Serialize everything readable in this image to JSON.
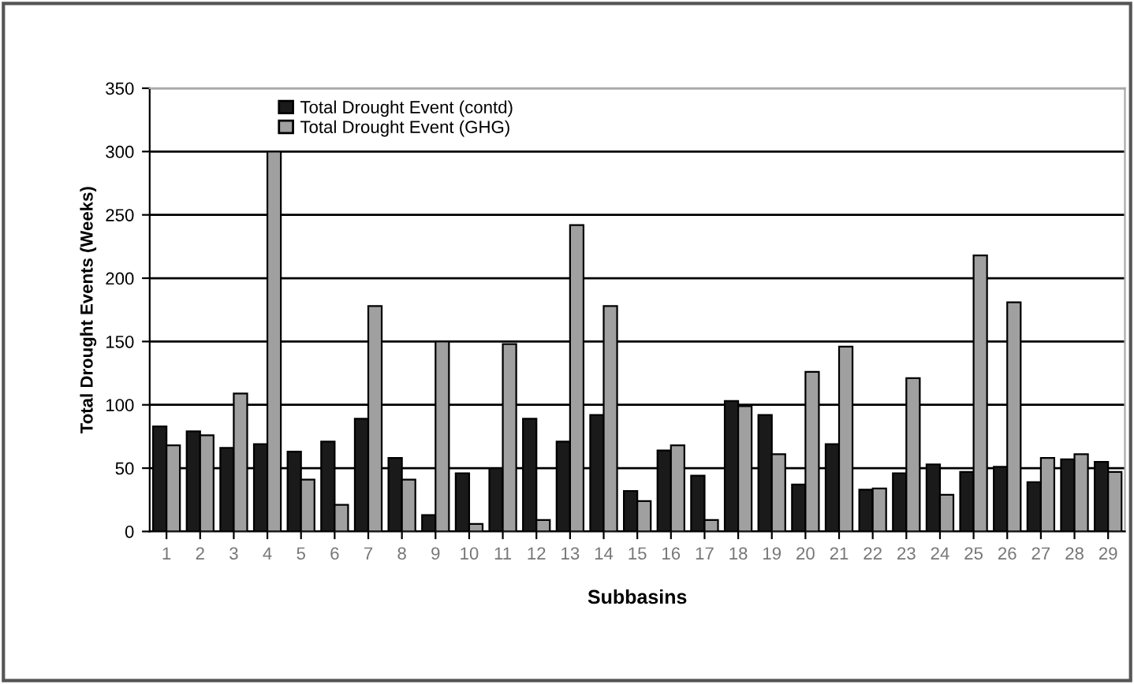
{
  "chart_data": {
    "type": "bar",
    "xlabel": "Subbasins",
    "ylabel": "Total Drought Events (Weeks)",
    "categories": [
      "1",
      "2",
      "3",
      "4",
      "5",
      "6",
      "7",
      "8",
      "9",
      "10",
      "11",
      "12",
      "13",
      "14",
      "15",
      "16",
      "17",
      "18",
      "19",
      "20",
      "21",
      "22",
      "23",
      "24",
      "25",
      "26",
      "27",
      "28",
      "29"
    ],
    "series": [
      {
        "name": "Total Drought Event (contd)",
        "color": "#1a1a1a",
        "values": [
          83,
          79,
          66,
          69,
          63,
          71,
          89,
          58,
          13,
          46,
          50,
          89,
          71,
          92,
          32,
          64,
          44,
          103,
          92,
          37,
          69,
          33,
          46,
          53,
          47,
          51,
          39,
          57,
          55
        ]
      },
      {
        "name": "Total Drought Event (GHG)",
        "color": "#a0a0a0",
        "values": [
          68,
          76,
          109,
          300,
          41,
          21,
          178,
          41,
          150,
          6,
          148,
          9,
          242,
          178,
          24,
          68,
          9,
          99,
          61,
          126,
          146,
          34,
          121,
          29,
          218,
          181,
          58,
          61,
          47
        ]
      }
    ],
    "ylim": [
      0,
      350
    ],
    "yticks": [
      0,
      50,
      100,
      150,
      200,
      250,
      300,
      350
    ],
    "grid": "y",
    "legend": "top left"
  }
}
